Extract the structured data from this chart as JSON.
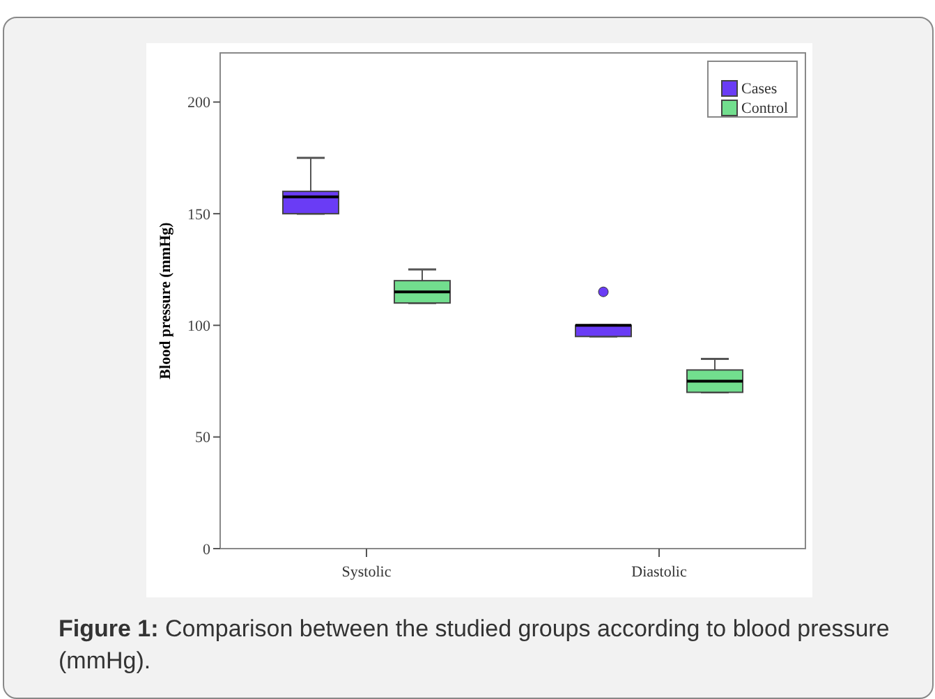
{
  "chart_data": {
    "type": "box",
    "ylabel": "Blood pressure (mmHg)",
    "categories": [
      "Systolic",
      "Diastolic"
    ],
    "series": [
      {
        "name": "Cases",
        "color": "#6a3cf5",
        "boxes": [
          {
            "low": 150,
            "q1": 150,
            "median": 157.5,
            "q3": 160,
            "high": 175
          },
          {
            "low": 95,
            "q1": 95,
            "median": 100,
            "q3": 100,
            "high": 100,
            "outliers": [
              115
            ]
          }
        ]
      },
      {
        "name": "Control",
        "color": "#72de8e",
        "boxes": [
          {
            "low": 110,
            "q1": 110,
            "median": 115,
            "q3": 120,
            "high": 125
          },
          {
            "low": 70,
            "q1": 70,
            "median": 75,
            "q3": 80,
            "high": 85
          }
        ]
      }
    ],
    "ylim": [
      0,
      222
    ],
    "yticks": [
      0,
      50,
      100,
      150,
      200
    ],
    "legend": "top right",
    "annotations": [
      "Figure 1: Comparison between the studied groups according to blood pressure (mmHg)."
    ]
  }
}
